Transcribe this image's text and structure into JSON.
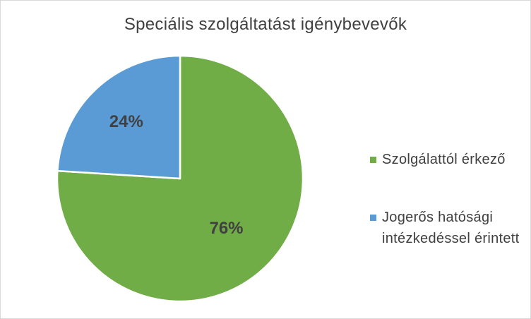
{
  "chart_data": {
    "type": "pie",
    "title": "Speciális szolgáltatást igénybevevők",
    "categories": [
      "Szolgálattól érkező",
      "Jogerős hatósági intézkedéssel érintett"
    ],
    "values": [
      76,
      24
    ],
    "data_labels": [
      "76%",
      "24%"
    ],
    "colors": [
      "#70ad47",
      "#5b9bd5"
    ],
    "legend_position": "right",
    "legend": [
      {
        "label": "Szolgálattól érkező",
        "color": "#70ad47"
      },
      {
        "label": "Jogerős hatósági intézkedéssel érintett",
        "color": "#5b9bd5"
      }
    ]
  }
}
